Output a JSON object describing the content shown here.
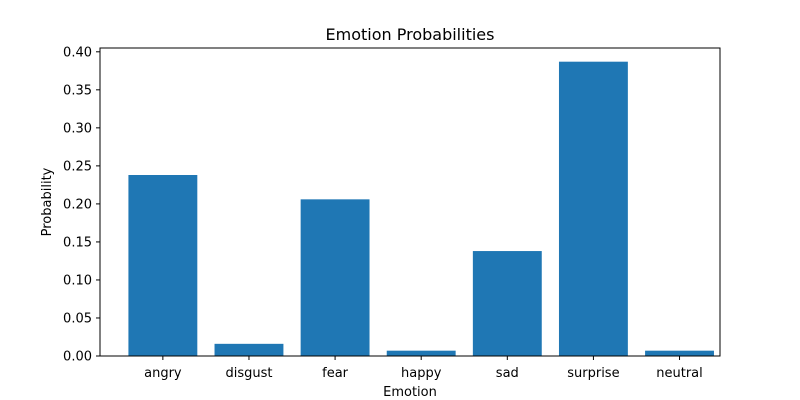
{
  "chart_data": {
    "type": "bar",
    "title": "Emotion Probabilities",
    "xlabel": "Emotion",
    "ylabel": "Probability",
    "categories": [
      "angry",
      "disgust",
      "fear",
      "happy",
      "sad",
      "surprise",
      "neutral"
    ],
    "values": [
      0.238,
      0.016,
      0.206,
      0.007,
      0.138,
      0.387,
      0.007
    ],
    "ylim": [
      0,
      0.405
    ],
    "yticks": [
      "0.00",
      "0.05",
      "0.10",
      "0.15",
      "0.20",
      "0.25",
      "0.30",
      "0.35",
      "0.40"
    ],
    "bar_color": "#1f77b4",
    "grid": false
  }
}
